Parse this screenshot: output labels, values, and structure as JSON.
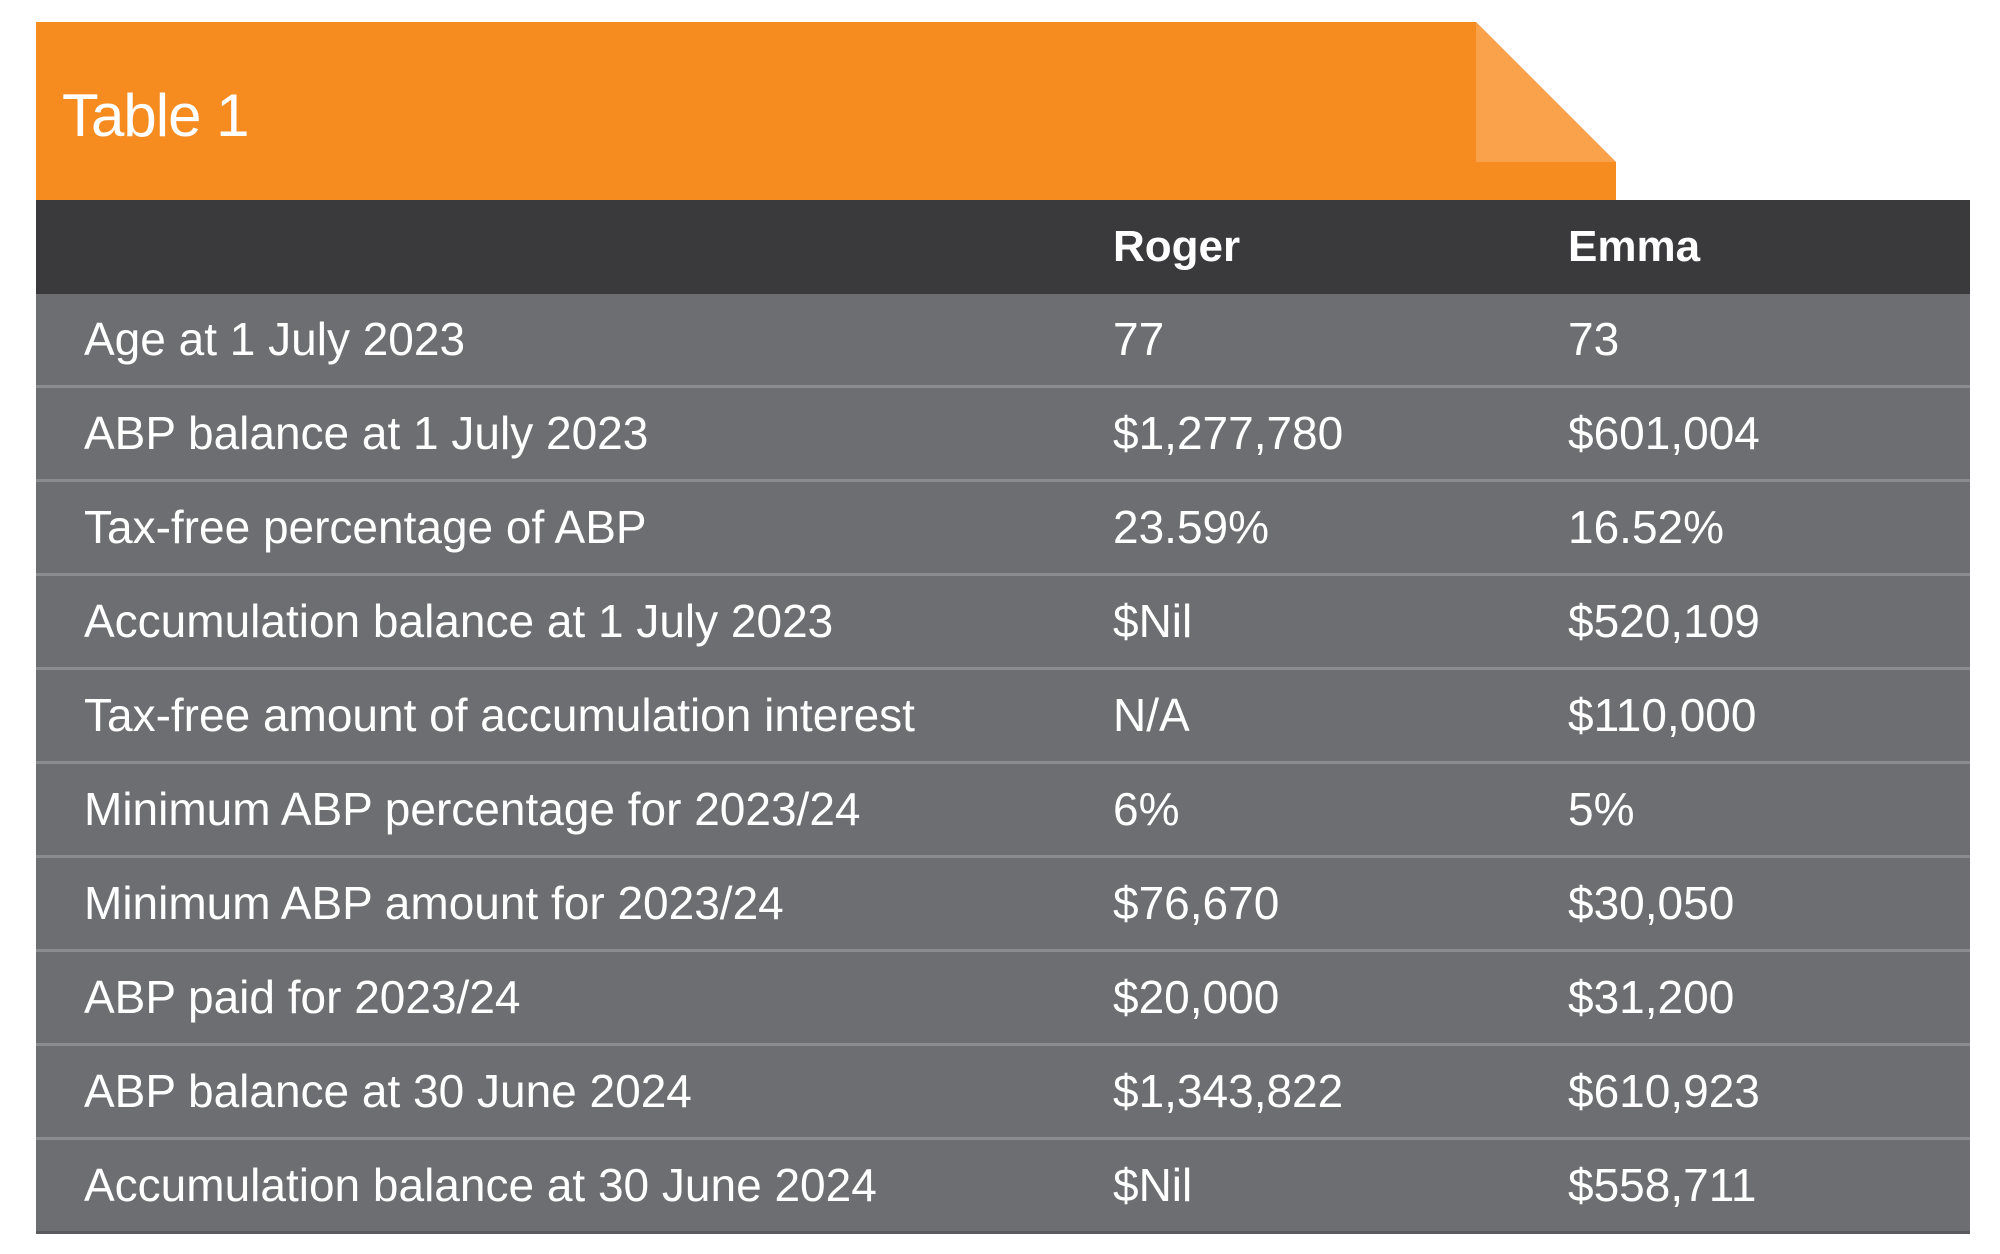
{
  "tab": {
    "title": "Table 1",
    "color": "#f68b1f",
    "fold_color": "#f9a14b"
  },
  "table": {
    "header_bg": "#3a3a3c",
    "row_bg": "#6d6e71",
    "columns": [
      "",
      "Roger",
      "Emma"
    ],
    "rows": [
      {
        "label": "Age at 1 July 2023",
        "roger": "77",
        "emma": "73"
      },
      {
        "label": "ABP balance at 1 July 2023",
        "roger": "$1,277,780",
        "emma": "$601,004"
      },
      {
        "label": "Tax-free percentage of ABP",
        "roger": "23.59%",
        "emma": "16.52%"
      },
      {
        "label": "Accumulation balance at 1 July 2023",
        "roger": "$Nil",
        "emma": "$520,109"
      },
      {
        "label": "Tax-free amount of accumulation interest",
        "roger": "N/A",
        "emma": "$110,000"
      },
      {
        "label": "Minimum ABP percentage for 2023/24",
        "roger": "6%",
        "emma": "5%"
      },
      {
        "label": "Minimum ABP amount for 2023/24",
        "roger": "$76,670",
        "emma": "$30,050"
      },
      {
        "label": "ABP paid for 2023/24",
        "roger": "$20,000",
        "emma": "$31,200"
      },
      {
        "label": "ABP balance at 30 June 2024",
        "roger": "$1,343,822",
        "emma": "$610,923"
      },
      {
        "label": "Accumulation balance at 30 June 2024",
        "roger": "$Nil",
        "emma": "$558,711"
      }
    ]
  }
}
